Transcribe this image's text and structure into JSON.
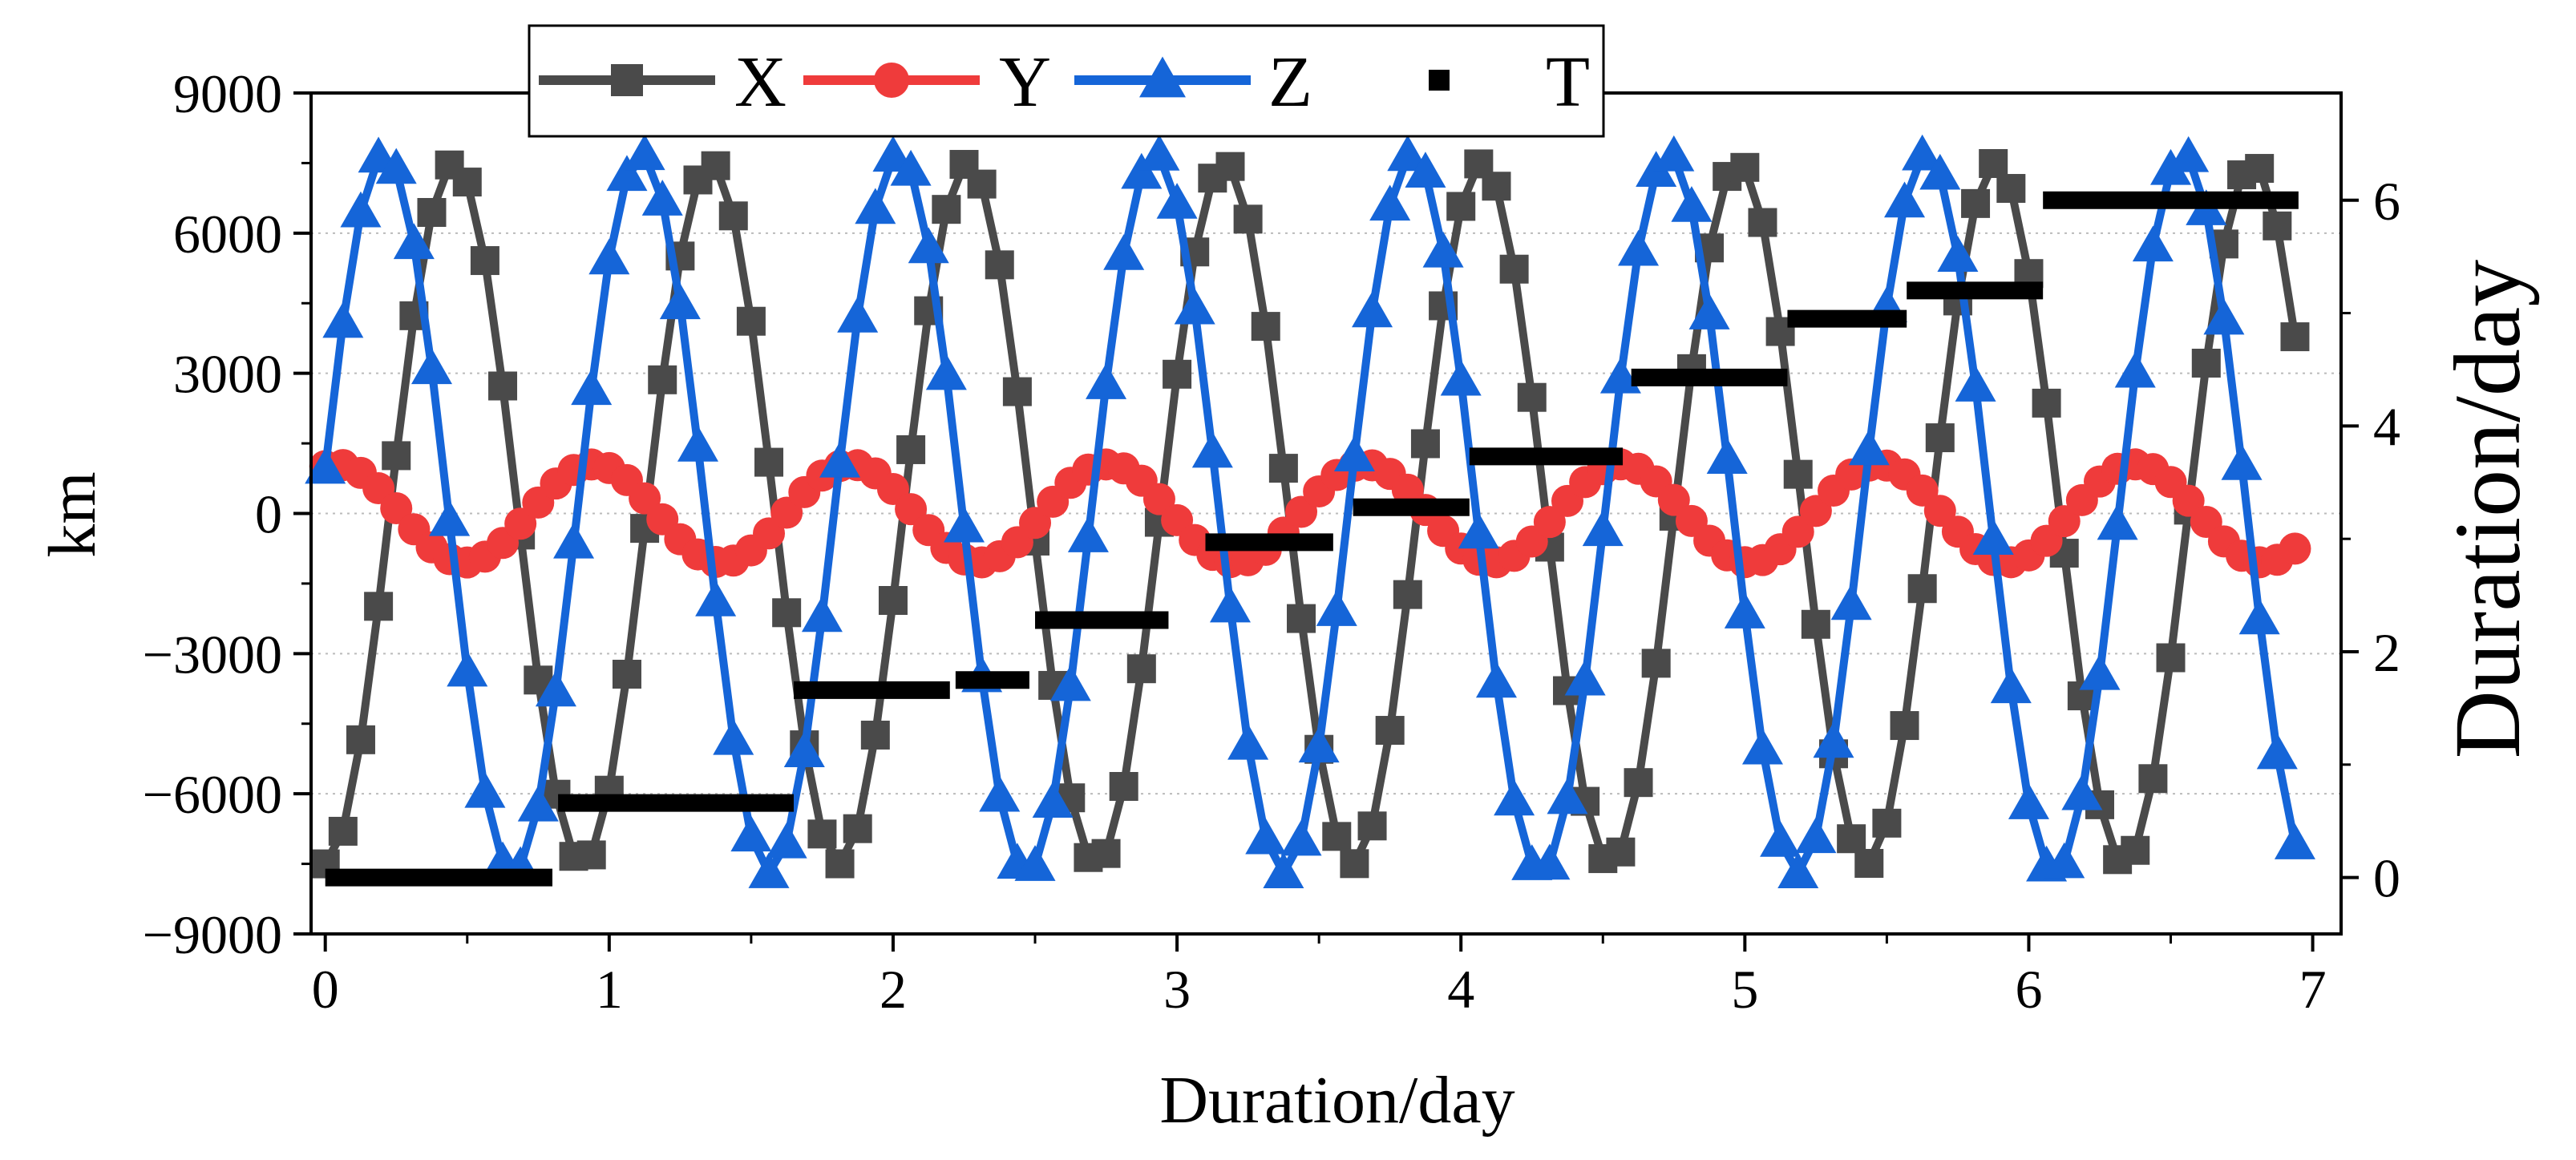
{
  "chart_data": {
    "type": "line",
    "title": "",
    "xlabel": "Duration/day",
    "ylabel": "km",
    "y2label": "Duration/day",
    "xlim": [
      -0.05,
      7.1
    ],
    "ylim": [
      -9000,
      9000
    ],
    "y2lim": [
      -0.5,
      6.95
    ],
    "x_ticks": [
      0,
      1,
      2,
      3,
      4,
      5,
      6,
      7
    ],
    "x_tick_labels": [
      "0",
      "1",
      "2",
      "3",
      "4",
      "5",
      "6",
      "7"
    ],
    "y_ticks": [
      -9000,
      -6000,
      -3000,
      0,
      3000,
      6000,
      9000
    ],
    "y_tick_labels": [
      "−9000",
      "−6000",
      "−3000",
      "0",
      "3000",
      "6000",
      "9000"
    ],
    "y2_ticks": [
      0,
      2,
      4,
      6
    ],
    "y2_tick_labels": [
      "0",
      "2",
      "4",
      "6"
    ],
    "grid": "horizontal dotted",
    "legend_position": "top",
    "colors": {
      "X": "#4a4a4a",
      "Y": "#ef3b3b",
      "Z": "#1565d8",
      "T": "#000000"
    },
    "series": [
      {
        "name": "X",
        "color": "#4a4a4a",
        "marker": "square",
        "axis": "left",
        "model": {
          "kind": "sinusoid",
          "amplitude": 7500,
          "period_days": 0.905,
          "phase_shift": -1.57,
          "x_start": 0,
          "x_end": 6.95,
          "step": 0.0625
        }
      },
      {
        "name": "Y",
        "color": "#ef3b3b",
        "marker": "circle",
        "axis": "left",
        "model": {
          "kind": "sinusoid",
          "amplitude": 1050,
          "period_days": 0.905,
          "phase_shift": 1.3,
          "x_start": 0,
          "x_end": 6.95,
          "step": 0.0625
        }
      },
      {
        "name": "Z",
        "color": "#1565d8",
        "marker": "triangle",
        "axis": "left",
        "model": {
          "kind": "sinusoid",
          "amplitude": 7700,
          "period_days": 0.905,
          "phase_shift": 0.125,
          "x_start": 0,
          "x_end": 6.95,
          "step": 0.0625
        }
      },
      {
        "name": "T",
        "color": "#000000",
        "marker": "square",
        "axis": "right",
        "segments": [
          {
            "x_start": 0.0,
            "x_end": 0.8,
            "y": 0.0
          },
          {
            "x_start": 0.82,
            "x_end": 1.65,
            "y": 0.66
          },
          {
            "x_start": 1.65,
            "x_end": 2.2,
            "y": 1.66
          },
          {
            "x_start": 2.22,
            "x_end": 2.48,
            "y": 1.75
          },
          {
            "x_start": 2.5,
            "x_end": 2.97,
            "y": 2.28
          },
          {
            "x_start": 3.1,
            "x_end": 3.55,
            "y": 2.97
          },
          {
            "x_start": 3.62,
            "x_end": 4.03,
            "y": 3.28
          },
          {
            "x_start": 4.03,
            "x_end": 4.57,
            "y": 3.73
          },
          {
            "x_start": 4.6,
            "x_end": 5.15,
            "y": 4.43
          },
          {
            "x_start": 5.15,
            "x_end": 5.57,
            "y": 4.95
          },
          {
            "x_start": 5.57,
            "x_end": 6.05,
            "y": 5.2
          },
          {
            "x_start": 6.05,
            "x_end": 6.95,
            "y": 6.0
          }
        ]
      }
    ],
    "legend": [
      {
        "label": "X",
        "color": "#4a4a4a",
        "marker": "square",
        "line": true
      },
      {
        "label": "Y",
        "color": "#ef3b3b",
        "marker": "circle",
        "line": true
      },
      {
        "label": "Z",
        "color": "#1565d8",
        "marker": "triangle",
        "line": true
      },
      {
        "label": "T",
        "color": "#000000",
        "marker": "square",
        "line": false
      }
    ]
  }
}
